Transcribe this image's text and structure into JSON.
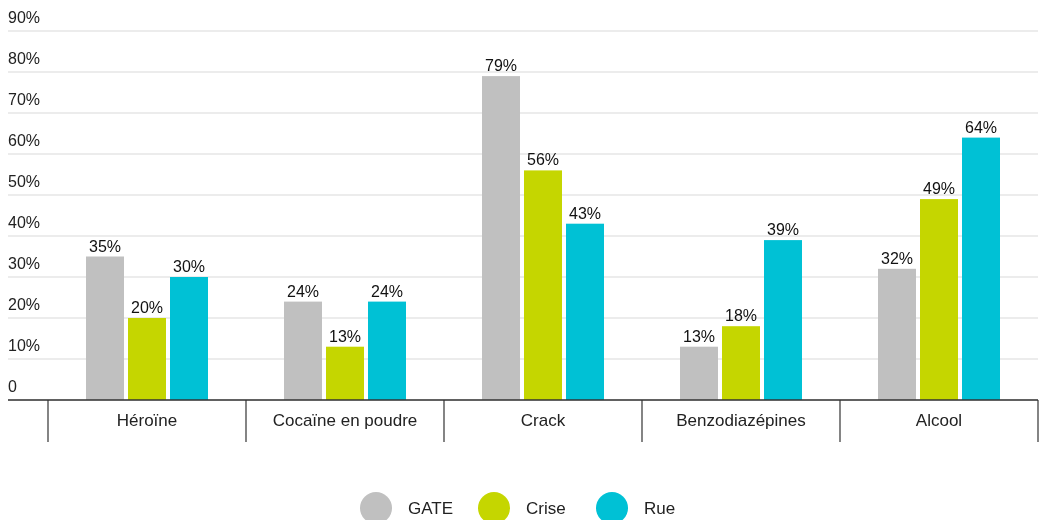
{
  "chart_data": {
    "type": "bar",
    "categories": [
      "Héroïne",
      "Cocaïne en poudre",
      "Crack",
      "Benzodiazépines",
      "Alcool"
    ],
    "series": [
      {
        "name": "GATE",
        "color": "#c0c0c0",
        "values": [
          35,
          24,
          79,
          13,
          32
        ],
        "value_labels": [
          "35%",
          "24%",
          "79%",
          "13%",
          "32%"
        ]
      },
      {
        "name": "Crise",
        "color": "#c5d600",
        "values": [
          20,
          13,
          56,
          18,
          49
        ],
        "value_labels": [
          "20%",
          "13%",
          "56%",
          "18%",
          "49%"
        ]
      },
      {
        "name": "Rue",
        "color": "#00c1d5",
        "values": [
          30,
          24,
          43,
          39,
          64
        ],
        "value_labels": [
          "30%",
          "24%",
          "43%",
          "39%",
          "64%"
        ]
      }
    ],
    "ylim": [
      0,
      90
    ],
    "yticks": [
      {
        "value": 0,
        "label": "0"
      },
      {
        "value": 10,
        "label": "10%"
      },
      {
        "value": 20,
        "label": "20%"
      },
      {
        "value": 30,
        "label": "30%"
      },
      {
        "value": 40,
        "label": "40%"
      },
      {
        "value": 50,
        "label": "50%"
      },
      {
        "value": 60,
        "label": "60%"
      },
      {
        "value": 70,
        "label": "70%"
      },
      {
        "value": 80,
        "label": "80%"
      },
      {
        "value": 90,
        "label": "90%"
      }
    ],
    "grid": "y",
    "legend": "bottom"
  }
}
